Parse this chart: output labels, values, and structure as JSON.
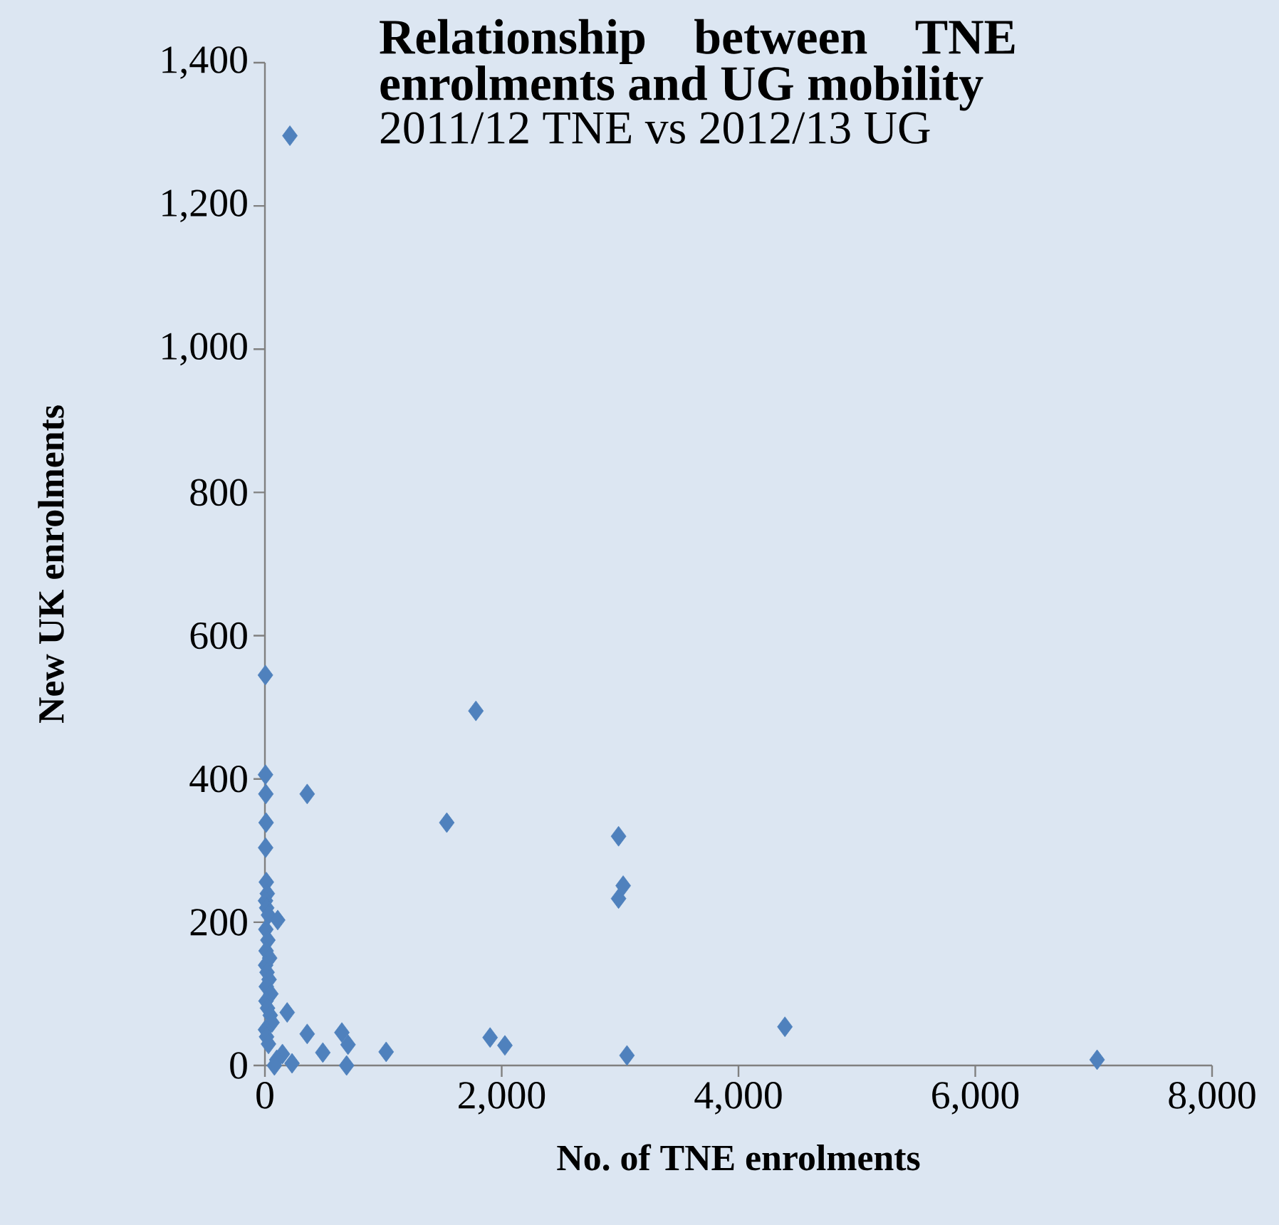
{
  "chart_data": {
    "type": "scatter",
    "title": "Relationship between TNE enrolments and UG mobility",
    "subtitle": "2011/12 TNE vs 2012/13 UG",
    "xlabel": "No. of TNE enrolments",
    "ylabel": "New UK enrolments",
    "xlim": [
      0,
      8000
    ],
    "ylim": [
      0,
      1400
    ],
    "xticks": [
      0,
      {
        "value": 2000,
        "label": "2,000"
      },
      {
        "value": 4000,
        "label": "4,000"
      },
      {
        "value": 6000,
        "label": "6,000"
      },
      {
        "value": 8000,
        "label": "8,000"
      }
    ],
    "yticks": [
      0,
      200,
      400,
      600,
      800,
      {
        "value": 1000,
        "label": "1,000"
      },
      {
        "value": 1200,
        "label": "1,200"
      },
      {
        "value": 1400,
        "label": "1,400"
      }
    ],
    "marker": "diamond",
    "grid": false,
    "series": [
      {
        "color": "#4f81bd",
        "x": [
          211,
          4,
          5,
          8,
          10,
          6,
          12,
          20,
          5,
          15,
          30,
          8,
          25,
          10,
          40,
          6,
          18,
          35,
          12,
          50,
          9,
          22,
          45,
          60,
          5,
          14,
          30,
          108,
          188,
          357,
          650,
          489,
          702,
          1024,
          690,
          229,
          148,
          100,
          80,
          357,
          1782,
          1536,
          2987,
          3026,
          2987,
          1902,
          2027,
          3058,
          4392,
          7029
        ],
        "values": [
          1298,
          545,
          406,
          379,
          339,
          304,
          256,
          240,
          230,
          220,
          210,
          190,
          175,
          160,
          150,
          140,
          130,
          120,
          110,
          100,
          90,
          80,
          70,
          60,
          50,
          40,
          30,
          203,
          74,
          44,
          46,
          18,
          29,
          19,
          0,
          3,
          16,
          8,
          0,
          379,
          495,
          339,
          320,
          251,
          233,
          39,
          28,
          14,
          54,
          8
        ]
      }
    ]
  }
}
